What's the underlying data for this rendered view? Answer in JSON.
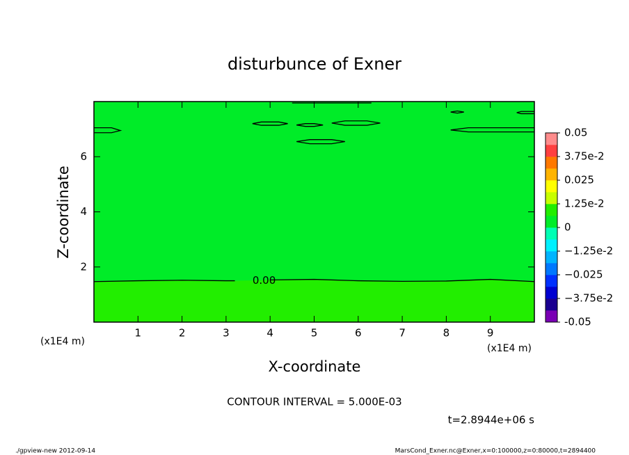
{
  "chart_data": {
    "type": "contour",
    "title": "disturbunce of Exner",
    "x_label": "X-coordinate",
    "y_label": "Z-coordinate",
    "x_unit": "(x1E4 m)",
    "y_unit": "(x1E4 m)",
    "contour_interval": "CONTOUR INTERVAL = 5.000E-03",
    "time_label": "t=2.8944e+06 s",
    "footer_left": "./gpview-new  2012-09-14",
    "footer_right": "MarsCond_Exner.nc@Exner,x=0:100000,z=0:80000,t=2894400",
    "xlim": [
      0,
      10
    ],
    "ylim": [
      0,
      8
    ],
    "xticks": [
      1,
      2,
      3,
      4,
      5,
      6,
      7,
      8,
      9
    ],
    "yticks": [
      2,
      4,
      6
    ],
    "background": "#00ec28",
    "contours": [
      {
        "level": 0,
        "label": "0.00",
        "label_x": 3.6,
        "fill_below": "#22ee00",
        "x": [
          0,
          1,
          2,
          3,
          3.2,
          null,
          4.0,
          5,
          6,
          7,
          8,
          9,
          10
        ],
        "y": [
          1.47,
          1.5,
          1.52,
          1.5,
          1.5,
          null,
          1.53,
          1.55,
          1.5,
          1.48,
          1.49,
          1.55,
          1.47
        ]
      },
      {
        "x": [
          0,
          0.4,
          0.6,
          0.4,
          0
        ],
        "y": [
          7.05,
          7.05,
          6.95,
          6.87,
          6.87
        ]
      },
      {
        "x": [
          3.6,
          3.8,
          4.2,
          4.4,
          4.2,
          3.8
        ],
        "y": [
          7.2,
          7.26,
          7.26,
          7.2,
          7.14,
          7.14
        ],
        "closed": true
      },
      {
        "x": [
          4.6,
          4.8,
          5.0,
          5.2,
          5.0,
          4.8
        ],
        "y": [
          7.15,
          7.2,
          7.2,
          7.15,
          7.1,
          7.1
        ],
        "closed": true
      },
      {
        "x": [
          5.4,
          5.7,
          6.2,
          6.5,
          6.2,
          5.7
        ],
        "y": [
          7.22,
          7.3,
          7.3,
          7.22,
          7.14,
          7.14
        ],
        "closed": true
      },
      {
        "x": [
          4.6,
          4.9,
          5.4,
          5.7,
          5.4,
          4.9
        ],
        "y": [
          6.55,
          6.62,
          6.62,
          6.55,
          6.47,
          6.47
        ],
        "closed": true
      },
      {
        "x": [
          8.1,
          8.25,
          8.4,
          8.25
        ],
        "y": [
          7.62,
          7.66,
          7.62,
          7.58
        ],
        "closed": true
      },
      {
        "x": [
          10,
          9.7,
          9.6,
          9.7,
          10
        ],
        "y": [
          7.64,
          7.64,
          7.6,
          7.56,
          7.56
        ]
      },
      {
        "x": [
          10,
          8.5,
          8.1,
          8.5,
          10
        ],
        "y": [
          7.05,
          7.05,
          6.97,
          6.9,
          6.9
        ]
      },
      {
        "x": [
          4.5,
          5.5,
          6.3
        ],
        "y": [
          7.95,
          7.95,
          7.95
        ]
      }
    ],
    "colorbar": {
      "clim": [
        -0.05,
        0.05
      ],
      "colors": [
        "#7a00b4",
        "#1a0090",
        "#0000d0",
        "#0030ff",
        "#0078ff",
        "#00b4ff",
        "#00f0ff",
        "#00ffb4",
        "#00ec28",
        "#22ee00",
        "#c8ff00",
        "#ffff00",
        "#ffb400",
        "#ff7800",
        "#ff4040",
        "#ff8c8c"
      ],
      "ticks": [
        -0.05,
        {
          "value": -0.0375,
          "label": "−3.75e-2"
        },
        {
          "value": -0.025,
          "label": "−0.025"
        },
        {
          "value": -0.0125,
          "label": "−1.25e-2"
        },
        0,
        {
          "value": 0.0125,
          "label": "1.25e-2"
        },
        0.025,
        {
          "value": 0.0375,
          "label": "3.75e-2"
        },
        0.05
      ]
    }
  }
}
